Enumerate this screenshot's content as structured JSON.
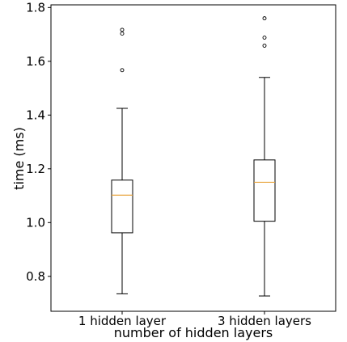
{
  "chart_data": {
    "type": "box",
    "title": "",
    "xlabel": "number of hidden layers",
    "ylabel": "time (ms)",
    "ylim": [
      0.67,
      1.81
    ],
    "yticks": [
      0.8,
      1.0,
      1.2,
      1.4,
      1.6,
      1.8
    ],
    "ytick_labels": [
      "0.8",
      "1.0",
      "1.2",
      "1.4",
      "1.6",
      "1.8"
    ],
    "grid": false,
    "median_color": "#e8a33b",
    "box_color": "#000000",
    "categories": [
      "1 hidden layer",
      "3 hidden layers"
    ],
    "boxes": [
      {
        "category": "1 hidden layer",
        "whisker_low": 0.735,
        "q1": 0.962,
        "median": 1.102,
        "q3": 1.158,
        "whisker_high": 1.425,
        "outliers": [
          1.567,
          1.703,
          1.717
        ]
      },
      {
        "category": "3 hidden layers",
        "whisker_low": 0.727,
        "q1": 1.005,
        "median": 1.15,
        "q3": 1.233,
        "whisker_high": 1.54,
        "outliers": [
          1.658,
          1.688,
          1.76
        ]
      }
    ]
  }
}
